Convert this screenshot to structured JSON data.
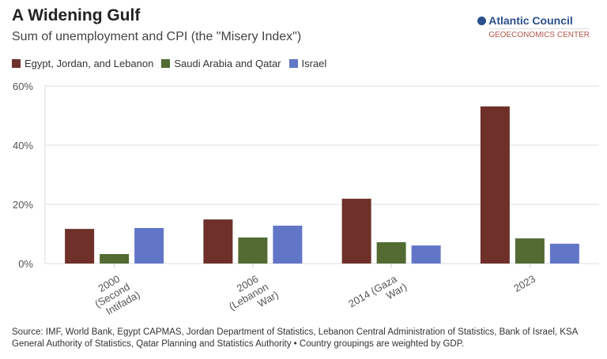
{
  "header": {
    "title": "A Widening Gulf",
    "subtitle": "Sum of unemployment and CPI (the \"Misery Index\")"
  },
  "logo": {
    "name": "Atlantic Council",
    "sub": "GEOECONOMICS CENTER"
  },
  "source": "Source: IMF, World Bank, Egypt CAPMAS, Jordan Department of Statistics, Lebanon Central Administration of Statistics, Bank of Israel, KSA General Authority of Statistics, Qatar Planning and Statistics Authority • Country groupings are weighted by GDP.",
  "chart_data": {
    "type": "bar",
    "title": "A Widening Gulf",
    "subtitle": "Sum of unemployment and CPI (the \"Misery Index\")",
    "categories": [
      [
        "2000",
        "(Second",
        "Intifada)"
      ],
      [
        "2006",
        "(Lebanon",
        "War)"
      ],
      [
        "2014 (Gaza",
        "War)"
      ],
      [
        "2023"
      ]
    ],
    "series": [
      {
        "name": "Egypt, Jordan, and Lebanon",
        "color": "#6e3029",
        "values": [
          11.7,
          14.9,
          21.9,
          53.1
        ]
      },
      {
        "name": "Saudi Arabia and Qatar",
        "color": "#536b32",
        "values": [
          3.2,
          8.8,
          7.2,
          8.5
        ]
      },
      {
        "name": "Israel",
        "color": "#6276c8",
        "values": [
          12.0,
          12.8,
          6.1,
          6.7
        ]
      }
    ],
    "yticks": [
      "0%",
      "20%",
      "40%",
      "60%"
    ],
    "ylim": [
      0,
      60
    ],
    "grid": true,
    "legend": "top-left"
  }
}
